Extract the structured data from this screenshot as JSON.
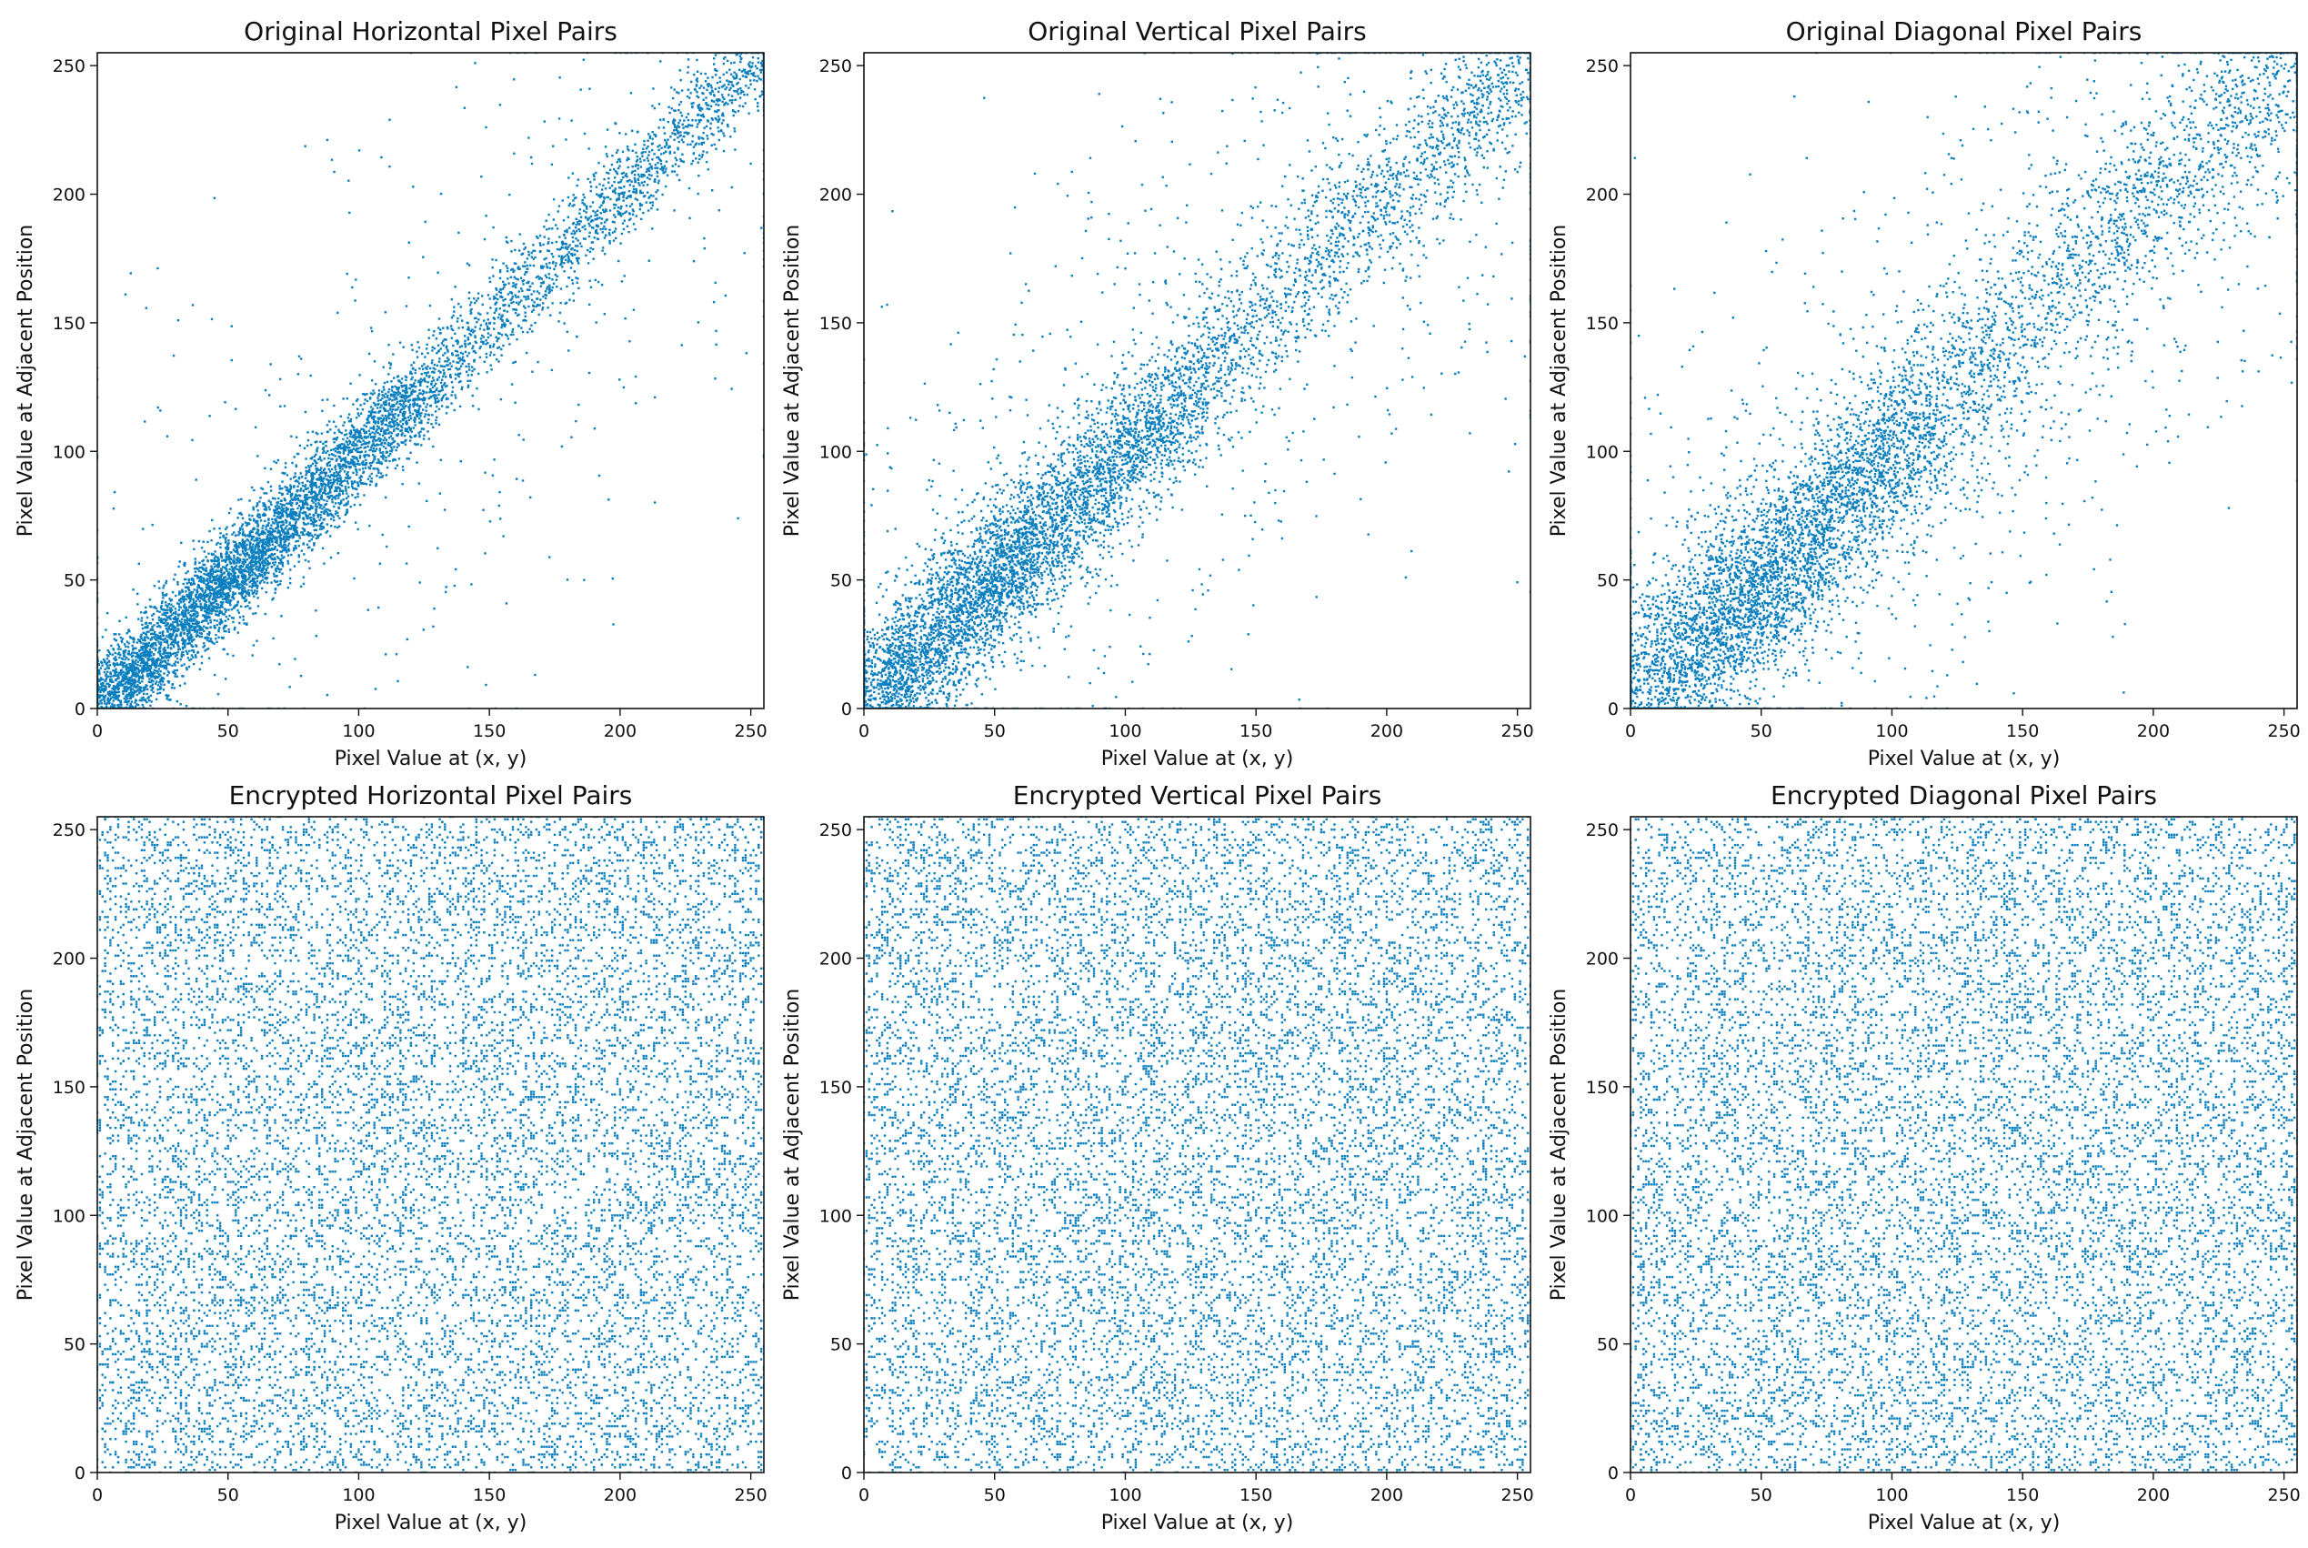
{
  "figure": {
    "marker_color": "#0a7fbf"
  },
  "chart_data": [
    {
      "type": "scatter",
      "title": "Original Horizontal Pixel Pairs",
      "xlabel": "Pixel Value at (x, y)",
      "ylabel": "Pixel Value at Adjacent Position",
      "xlim": [
        0,
        255
      ],
      "ylim": [
        0,
        255
      ],
      "xticks": [
        0,
        50,
        100,
        150,
        200,
        250
      ],
      "yticks": [
        0,
        50,
        100,
        150,
        200,
        250
      ],
      "grid": false,
      "distribution": {
        "kind": "correlated",
        "spread": 14,
        "outlier_fraction": 0.07
      },
      "color": "#0a7fbf"
    },
    {
      "type": "scatter",
      "title": "Original Vertical Pixel Pairs",
      "xlabel": "Pixel Value at (x, y)",
      "ylabel": "Pixel Value at Adjacent Position",
      "xlim": [
        0,
        255
      ],
      "ylim": [
        0,
        255
      ],
      "xticks": [
        0,
        50,
        100,
        150,
        200,
        250
      ],
      "yticks": [
        0,
        50,
        100,
        150,
        200,
        250
      ],
      "grid": false,
      "distribution": {
        "kind": "correlated",
        "spread": 22,
        "outlier_fraction": 0.14
      },
      "color": "#0a7fbf"
    },
    {
      "type": "scatter",
      "title": "Original Diagonal Pixel Pairs",
      "xlabel": "Pixel Value at (x, y)",
      "ylabel": "Pixel Value at Adjacent Position",
      "xlim": [
        0,
        255
      ],
      "ylim": [
        0,
        255
      ],
      "xticks": [
        0,
        50,
        100,
        150,
        200,
        250
      ],
      "yticks": [
        0,
        50,
        100,
        150,
        200,
        250
      ],
      "grid": false,
      "distribution": {
        "kind": "correlated",
        "spread": 28,
        "outlier_fraction": 0.18
      },
      "color": "#0a7fbf"
    },
    {
      "type": "scatter",
      "title": "Encrypted Horizontal Pixel Pairs",
      "xlabel": "Pixel Value at (x, y)",
      "ylabel": "Pixel Value at Adjacent Position",
      "xlim": [
        0,
        255
      ],
      "ylim": [
        0,
        255
      ],
      "xticks": [
        0,
        50,
        100,
        150,
        200,
        250
      ],
      "yticks": [
        0,
        50,
        100,
        150,
        200,
        250
      ],
      "grid": false,
      "distribution": {
        "kind": "uniform"
      },
      "color": "#0a7fbf"
    },
    {
      "type": "scatter",
      "title": "Encrypted Vertical Pixel Pairs",
      "xlabel": "Pixel Value at (x, y)",
      "ylabel": "Pixel Value at Adjacent Position",
      "xlim": [
        0,
        255
      ],
      "ylim": [
        0,
        255
      ],
      "xticks": [
        0,
        50,
        100,
        150,
        200,
        250
      ],
      "yticks": [
        0,
        50,
        100,
        150,
        200,
        250
      ],
      "grid": false,
      "distribution": {
        "kind": "uniform"
      },
      "color": "#0a7fbf"
    },
    {
      "type": "scatter",
      "title": "Encrypted Diagonal Pixel Pairs",
      "xlabel": "Pixel Value at (x, y)",
      "ylabel": "Pixel Value at Adjacent Position",
      "xlim": [
        0,
        255
      ],
      "ylim": [
        0,
        255
      ],
      "xticks": [
        0,
        50,
        100,
        150,
        200,
        250
      ],
      "yticks": [
        0,
        50,
        100,
        150,
        200,
        250
      ],
      "grid": false,
      "distribution": {
        "kind": "uniform"
      },
      "color": "#0a7fbf"
    }
  ]
}
